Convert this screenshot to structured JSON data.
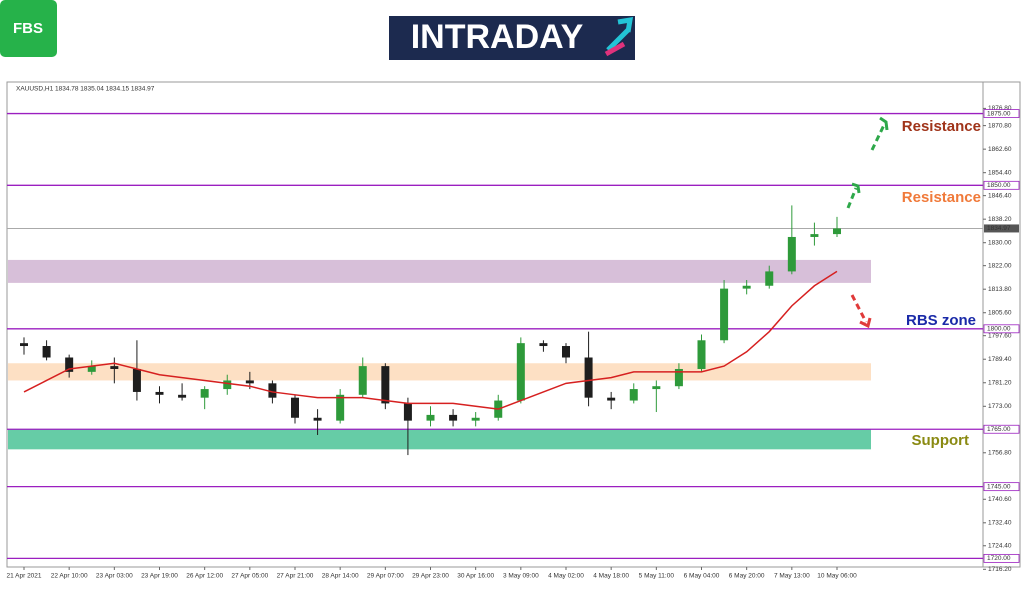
{
  "header": {
    "logo": "FBS",
    "banner": "INTRADAY"
  },
  "chart_data": {
    "type": "candlestick",
    "title": "XAUUSD,H1  1834.78 1835.04 1834.15 1834.97",
    "categories": [
      "21 Apr 2021",
      null,
      "22 Apr 10:00",
      null,
      "23 Apr 03:00",
      null,
      "23 Apr 19:00",
      null,
      "26 Apr 12:00",
      null,
      "27 Apr 05:00",
      null,
      "27 Apr 21:00",
      null,
      "28 Apr 14:00",
      null,
      "29 Apr 07:00",
      null,
      "29 Apr 23:00",
      null,
      "30 Apr 16:00",
      null,
      "3 May 09:00",
      null,
      "4 May 02:00",
      null,
      "4 May 18:00",
      null,
      "5 May 11:00",
      null,
      "6 May 04:00",
      null,
      "6 May 20:00",
      null,
      "7 May 13:00",
      null,
      "10 May 06:00"
    ],
    "open": [
      1795,
      1794,
      1790,
      1785,
      1787,
      1786,
      1778,
      1777,
      1776,
      1779,
      1782,
      1781,
      1776,
      1769,
      1768,
      1777,
      1787,
      1774,
      1768,
      1770,
      1768,
      1769,
      1775,
      1795,
      1794,
      1790,
      1776,
      1775,
      1779,
      1780,
      1786,
      1796,
      1814,
      1815,
      1820,
      1832,
      1833
    ],
    "high": [
      1797,
      1796,
      1791,
      1789,
      1790,
      1796,
      1780,
      1781,
      1780,
      1784,
      1785,
      1782,
      1777,
      1772,
      1779,
      1790,
      1788,
      1776,
      1773,
      1772,
      1771,
      1777,
      1797,
      1796,
      1795,
      1799,
      1778,
      1781,
      1782,
      1788,
      1798,
      1817,
      1817,
      1822,
      1843,
      1837,
      1839
    ],
    "low": [
      1791,
      1789,
      1783,
      1784,
      1781,
      1775,
      1774,
      1775,
      1772,
      1777,
      1779,
      1774,
      1767,
      1763,
      1767,
      1776,
      1772,
      1756,
      1766,
      1766,
      1766,
      1768,
      1774,
      1792,
      1788,
      1773,
      1772,
      1774,
      1771,
      1779,
      1785,
      1795,
      1812,
      1814,
      1819,
      1829,
      1832
    ],
    "close": [
      1794,
      1790,
      1785,
      1787,
      1786,
      1778,
      1777,
      1776,
      1779,
      1782,
      1781,
      1776,
      1769,
      1768,
      1777,
      1787,
      1774,
      1768,
      1770,
      1768,
      1769,
      1775,
      1795,
      1794,
      1790,
      1776,
      1775,
      1779,
      1780,
      1786,
      1796,
      1814,
      1815,
      1820,
      1832,
      1833,
      1834.97
    ],
    "up_color": "#2e9a3a",
    "down_color": "#1e1e1e",
    "moving_average": {
      "color": "#d62020",
      "values": [
        1778,
        1782,
        1786,
        1787,
        1788,
        1786,
        1784,
        1783,
        1782,
        1781,
        1780,
        1778,
        1777,
        1776,
        1776,
        1776,
        1775,
        1774,
        1774,
        1774,
        1773,
        1772,
        1775,
        1778,
        1781,
        1782,
        1783,
        1785,
        1785,
        1785,
        1785,
        1787,
        1792,
        1799,
        1808,
        1815,
        1820
      ]
    },
    "ylim": [
      1717,
      1886
    ],
    "yticks": [
      {
        "value": 1876.8,
        "label": "1876.80"
      },
      {
        "value": 1870.8,
        "label": "1870.80"
      },
      {
        "value": 1862.6,
        "label": "1862.60"
      },
      {
        "value": 1854.4,
        "label": "1854.40"
      },
      {
        "value": 1846.4,
        "label": "1846.40"
      },
      {
        "value": 1838.2,
        "label": "1838.20"
      },
      {
        "value": 1830,
        "label": "1830.00"
      },
      {
        "value": 1822,
        "label": "1822.00"
      },
      {
        "value": 1813.8,
        "label": "1813.80"
      },
      {
        "value": 1805.6,
        "label": "1805.60"
      },
      {
        "value": 1797.6,
        "label": "1797.60"
      },
      {
        "value": 1789.4,
        "label": "1789.40"
      },
      {
        "value": 1781.2,
        "label": "1781.20"
      },
      {
        "value": 1773,
        "label": "1773.00"
      },
      {
        "value": 1756.8,
        "label": "1756.80"
      },
      {
        "value": 1740.6,
        "label": "1740.60"
      },
      {
        "value": 1732.4,
        "label": "1732.40"
      },
      {
        "value": 1724.4,
        "label": "1724.40"
      },
      {
        "value": 1716.2,
        "label": "1716.20"
      }
    ],
    "levels": [
      {
        "value": 1875,
        "label": "1875.00"
      },
      {
        "value": 1850,
        "label": "1850.00"
      },
      {
        "value": 1800,
        "label": "1800.00"
      },
      {
        "value": 1765,
        "label": "1765.00"
      },
      {
        "value": 1745,
        "label": "1745.00"
      },
      {
        "value": 1720,
        "label": "1720.00"
      }
    ],
    "level_color": "#9b1fc0",
    "price_line": {
      "value": 1834.97,
      "label": "1834.97"
    },
    "zones": [
      {
        "from": 1816,
        "to": 1824,
        "color": "#d7bfd9"
      },
      {
        "from": 1782,
        "to": 1788,
        "color": "#fde0c4"
      },
      {
        "from": 1758,
        "to": 1765,
        "color": "#66cca6"
      }
    ],
    "annotations": [
      "Resistance",
      "Resistance",
      "RBS zone",
      "Support"
    ]
  }
}
